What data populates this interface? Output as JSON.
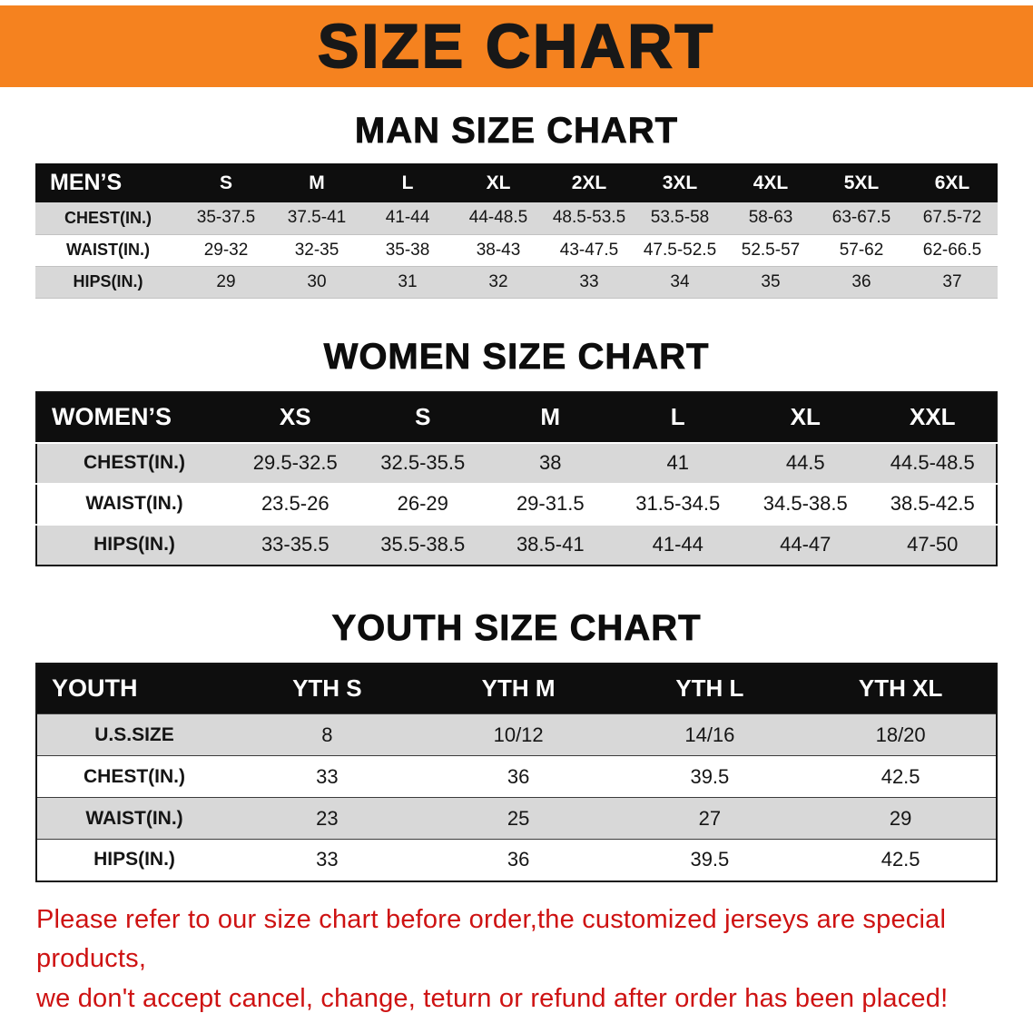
{
  "banner": {
    "title": "SIZE CHART",
    "bg_color": "#f5821f",
    "text_color": "#181818"
  },
  "sections": [
    {
      "heading": "MAN SIZE CHART",
      "table": {
        "label": "MEN’S",
        "sizes": [
          "S",
          "M",
          "L",
          "XL",
          "2XL",
          "3XL",
          "4XL",
          "5XL",
          "6XL"
        ],
        "rows": [
          {
            "label": "CHEST(IN.)",
            "values": [
              "35-37.5",
              "37.5-41",
              "41-44",
              "44-48.5",
              "48.5-53.5",
              "53.5-58",
              "58-63",
              "63-67.5",
              "67.5-72"
            ]
          },
          {
            "label": "WAIST(IN.)",
            "values": [
              "29-32",
              "32-35",
              "35-38",
              "38-43",
              "43-47.5",
              "47.5-52.5",
              "52.5-57",
              "57-62",
              "62-66.5"
            ]
          },
          {
            "label": "HIPS(IN.)",
            "values": [
              "29",
              "30",
              "31",
              "32",
              "33",
              "34",
              "35",
              "36",
              "37"
            ]
          }
        ]
      }
    },
    {
      "heading": "WOMEN SIZE CHART",
      "table": {
        "label": "WOMEN’S",
        "sizes": [
          "XS",
          "S",
          "M",
          "L",
          "XL",
          "XXL"
        ],
        "rows": [
          {
            "label": "CHEST(IN.)",
            "values": [
              "29.5-32.5",
              "32.5-35.5",
              "38",
              "41",
              "44.5",
              "44.5-48.5"
            ]
          },
          {
            "label": "WAIST(IN.)",
            "values": [
              "23.5-26",
              "26-29",
              "29-31.5",
              "31.5-34.5",
              "34.5-38.5",
              "38.5-42.5"
            ]
          },
          {
            "label": "HIPS(IN.)",
            "values": [
              "33-35.5",
              "35.5-38.5",
              "38.5-41",
              "41-44",
              "44-47",
              "47-50"
            ]
          }
        ]
      }
    },
    {
      "heading": "YOUTH SIZE CHART",
      "table": {
        "label": "YOUTH",
        "sizes": [
          "YTH S",
          "YTH M",
          "YTH L",
          "YTH XL"
        ],
        "rows": [
          {
            "label": "U.S.SIZE",
            "values": [
              "8",
              "10/12",
              "14/16",
              "18/20"
            ]
          },
          {
            "label": "CHEST(IN.)",
            "values": [
              "33",
              "36",
              "39.5",
              "42.5"
            ]
          },
          {
            "label": "WAIST(IN.)",
            "values": [
              "23",
              "25",
              "27",
              "29"
            ]
          },
          {
            "label": "HIPS(IN.)",
            "values": [
              "33",
              "36",
              "39.5",
              "42.5"
            ]
          }
        ]
      }
    }
  ],
  "disclaimer": {
    "color": "#ce1212",
    "lines": [
      "Please refer to our size chart before order,the customized jerseys are special products,",
      "we don't accept cancel, change, teturn or refund after order has been placed!"
    ]
  }
}
